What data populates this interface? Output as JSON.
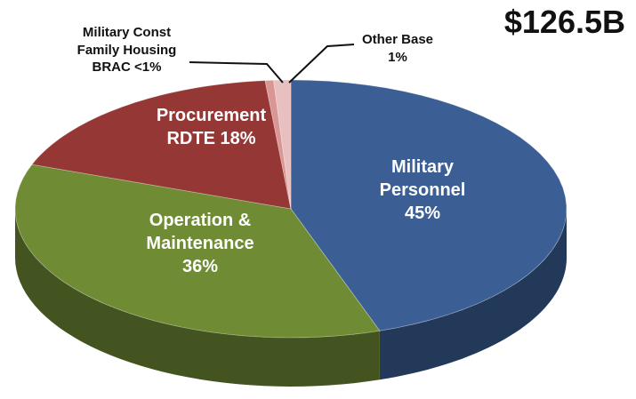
{
  "chart_data": {
    "type": "pie",
    "title": "$126.5B",
    "categories": [
      "Military Personnel",
      "Operation & Maintenance",
      "Procurement RDTE",
      "Military Const Family Housing BRAC",
      "Other Base"
    ],
    "values": [
      45,
      36,
      18,
      0.5,
      1
    ],
    "value_labels": [
      "45%",
      "36%",
      "18%",
      "<1%",
      "1%"
    ],
    "colors": [
      "#3b5f94",
      "#6f8c35",
      "#953735",
      "#d99694",
      "#e8c0bf"
    ]
  }
}
